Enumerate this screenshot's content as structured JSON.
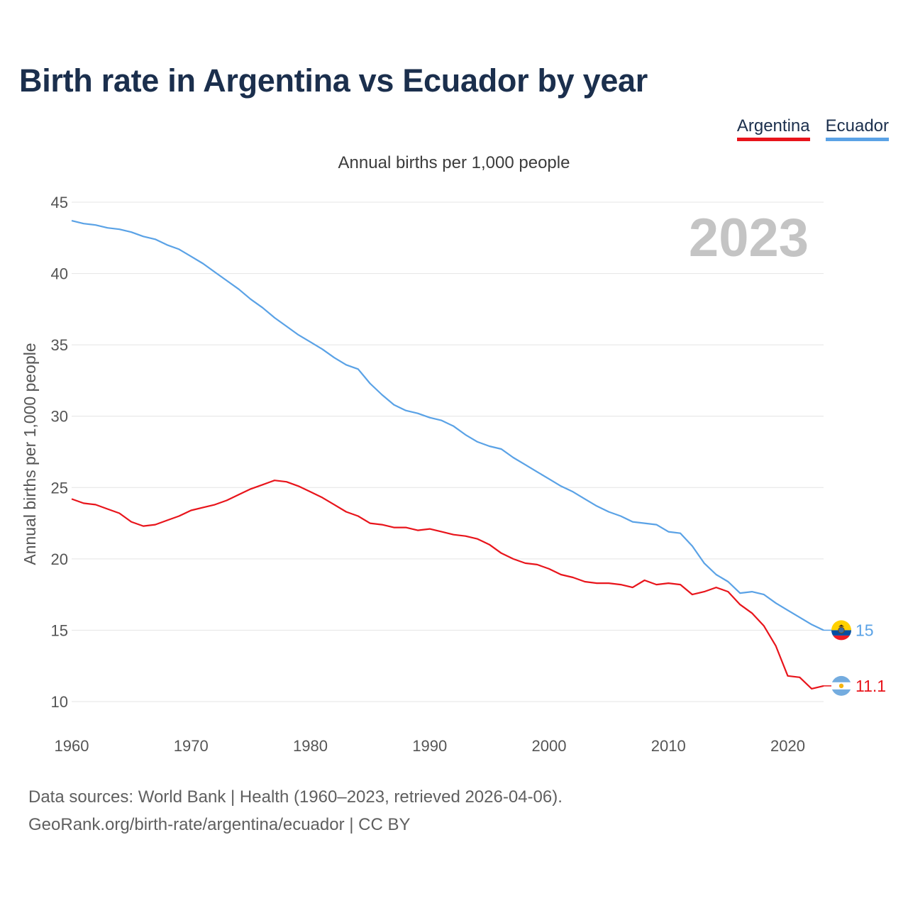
{
  "title": "Birth rate in Argentina vs Ecuador by year",
  "legend": {
    "argentina": "Argentina",
    "ecuador": "Ecuador"
  },
  "subtitle": "Annual births per 1,000 people",
  "colors": {
    "argentina": "#e8141b",
    "ecuador": "#5aa2e6",
    "title": "#1b2f4d"
  },
  "source": {
    "line1": "Data sources: World Bank | Health (1960–2023, retrieved 2026-04-06).",
    "line2": "GeoRank.org/birth-rate/argentina/ecuador | CC BY"
  },
  "chart_data": {
    "type": "line",
    "title": "Birth rate in Argentina vs Ecuador by year",
    "ylabel": "Annual births per 1,000 people",
    "xlabel": "",
    "year_display": "2023",
    "ylim": [
      10,
      45
    ],
    "xlim": [
      1960,
      2023
    ],
    "yticks": [
      10,
      15,
      20,
      25,
      30,
      35,
      40,
      45
    ],
    "xticks": [
      1960,
      1970,
      1980,
      1990,
      2000,
      2010,
      2020
    ],
    "grid": true,
    "x": [
      1960,
      1961,
      1962,
      1963,
      1964,
      1965,
      1966,
      1967,
      1968,
      1969,
      1970,
      1971,
      1972,
      1973,
      1974,
      1975,
      1976,
      1977,
      1978,
      1979,
      1980,
      1981,
      1982,
      1983,
      1984,
      1985,
      1986,
      1987,
      1988,
      1989,
      1990,
      1991,
      1992,
      1993,
      1994,
      1995,
      1996,
      1997,
      1998,
      1999,
      2000,
      2001,
      2002,
      2003,
      2004,
      2005,
      2006,
      2007,
      2008,
      2009,
      2010,
      2011,
      2012,
      2013,
      2014,
      2015,
      2016,
      2017,
      2018,
      2019,
      2020,
      2021,
      2022,
      2023
    ],
    "series": [
      {
        "name": "Argentina",
        "end_label": "11.1",
        "values": [
          24.2,
          23.9,
          23.8,
          23.5,
          23.2,
          22.6,
          22.3,
          22.4,
          22.7,
          23.0,
          23.4,
          23.6,
          23.8,
          24.1,
          24.5,
          24.9,
          25.2,
          25.5,
          25.4,
          25.1,
          24.7,
          24.3,
          23.8,
          23.3,
          23.0,
          22.5,
          22.4,
          22.2,
          22.2,
          22.0,
          22.1,
          21.9,
          21.7,
          21.6,
          21.4,
          21.0,
          20.4,
          20.0,
          19.7,
          19.6,
          19.3,
          18.9,
          18.7,
          18.4,
          18.3,
          18.3,
          18.2,
          18.0,
          18.5,
          18.2,
          18.3,
          18.2,
          17.5,
          17.7,
          18.0,
          17.7,
          16.8,
          16.2,
          15.3,
          13.9,
          11.8,
          11.7,
          10.9,
          11.1
        ]
      },
      {
        "name": "Ecuador",
        "end_label": "15",
        "values": [
          43.7,
          43.5,
          43.4,
          43.2,
          43.1,
          42.9,
          42.6,
          42.4,
          42.0,
          41.7,
          41.2,
          40.7,
          40.1,
          39.5,
          38.9,
          38.2,
          37.6,
          36.9,
          36.3,
          35.7,
          35.2,
          34.7,
          34.1,
          33.6,
          33.3,
          32.3,
          31.5,
          30.8,
          30.4,
          30.2,
          29.9,
          29.7,
          29.3,
          28.7,
          28.2,
          27.9,
          27.7,
          27.1,
          26.6,
          26.1,
          25.6,
          25.1,
          24.7,
          24.2,
          23.7,
          23.3,
          23.0,
          22.6,
          22.5,
          22.4,
          21.9,
          21.8,
          20.9,
          19.7,
          18.9,
          18.4,
          17.6,
          17.7,
          17.5,
          16.9,
          16.4,
          15.9,
          15.4,
          15.0
        ]
      }
    ]
  }
}
